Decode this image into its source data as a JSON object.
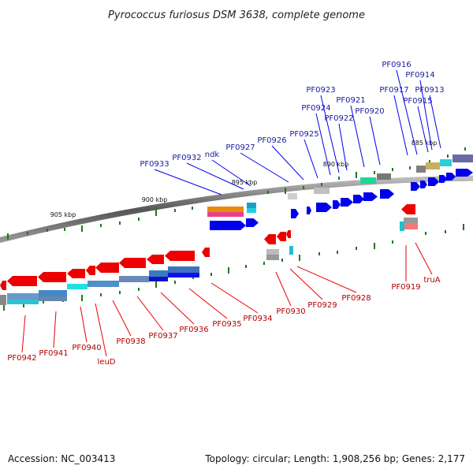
{
  "title": "Pyrococcus furiosus DSM 3638, complete genome",
  "footer": {
    "accession": "Accession: NC_003413",
    "topology": "Topology: circular; Length: 1,908,256 bp; Genes: 2,177"
  },
  "scale_labels": [
    "905 kbp",
    "900 kbp",
    "895 kbp",
    "890 kbp",
    "885 kbp"
  ],
  "forward_genes": [
    "PF0933",
    "PF0932",
    "ndk",
    "PF0927",
    "PF0926",
    "PF0925",
    "PF0924",
    "PF0923",
    "PF0922",
    "PF0921",
    "PF0920",
    "PF0917",
    "PF0916",
    "PF0915",
    "PF0914",
    "PF0913"
  ],
  "reverse_genes": [
    "PF0942",
    "PF0941",
    "PF0940",
    "leuD",
    "PF0938",
    "PF0937",
    "PF0936",
    "PF0935",
    "PF0934",
    "PF0930",
    "PF0929",
    "PF0928",
    "PF0919",
    "truA"
  ],
  "colors": {
    "forward": "#0000ee",
    "reverse": "#ee0000",
    "backbone": "#808080",
    "tick": "#1a7a1a"
  }
}
